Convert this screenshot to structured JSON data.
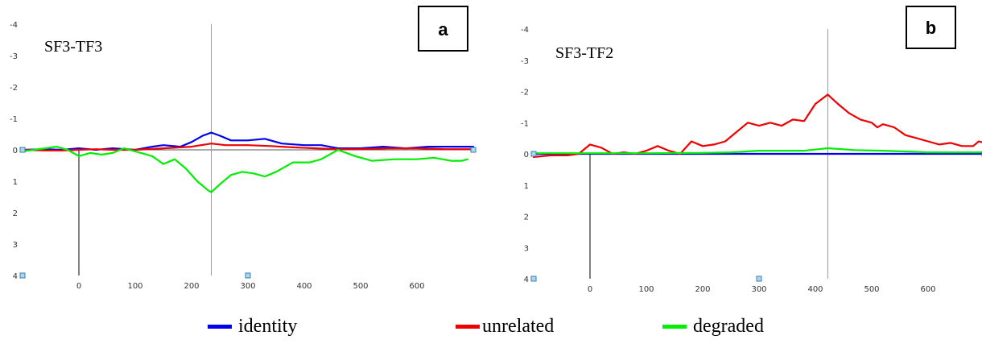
{
  "colors": {
    "identity": "#0000ee",
    "unrelated": "#ee0000",
    "degraded": "#00ee00"
  },
  "legend": {
    "items": [
      {
        "label": "identity",
        "color": "#0000ee"
      },
      {
        "label": "unrelated",
        "color": "#ee0000"
      },
      {
        "label": "degraded",
        "color": "#00ee00"
      }
    ]
  },
  "chart_data": [
    {
      "type": "line",
      "panel_label": "a",
      "title": "SF3-TF3",
      "xlim": [
        -100,
        700
      ],
      "ylim": [
        4,
        -4
      ],
      "y_inverted": true,
      "xticks": [
        0,
        100,
        200,
        300,
        400,
        500,
        600
      ],
      "yticks": [
        -4,
        -3,
        -2,
        -1,
        0,
        1,
        2,
        3,
        4
      ],
      "ytick_labels": [
        "-4",
        "-3",
        "-2",
        "-1",
        "0",
        "1",
        "2",
        "3",
        "4"
      ],
      "cursor_x": 235,
      "series": [
        {
          "name": "identity",
          "x": [
            -100,
            -60,
            -30,
            0,
            30,
            60,
            100,
            130,
            150,
            180,
            200,
            220,
            235,
            250,
            270,
            300,
            330,
            360,
            400,
            430,
            460,
            500,
            540,
            580,
            620,
            660,
            680,
            700
          ],
          "y": [
            0,
            -0.02,
            0,
            -0.05,
            0,
            -0.05,
            0,
            -0.1,
            -0.15,
            -0.1,
            -0.25,
            -0.45,
            -0.55,
            -0.45,
            -0.3,
            -0.3,
            -0.35,
            -0.2,
            -0.15,
            -0.15,
            -0.05,
            -0.05,
            -0.1,
            -0.05,
            -0.1,
            -0.1,
            -0.1,
            -0.1
          ]
        },
        {
          "name": "unrelated",
          "x": [
            -100,
            -60,
            -30,
            0,
            30,
            60,
            100,
            150,
            200,
            235,
            260,
            300,
            340,
            380,
            420,
            460,
            500,
            550,
            600,
            650,
            700
          ],
          "y": [
            0,
            0.02,
            0.02,
            0,
            -0.02,
            0,
            0,
            -0.05,
            -0.1,
            -0.2,
            -0.15,
            -0.15,
            -0.12,
            -0.08,
            -0.05,
            -0.02,
            -0.02,
            -0.05,
            -0.05,
            -0.02,
            -0.02
          ]
        },
        {
          "name": "degraded",
          "x": [
            -100,
            -80,
            -60,
            -40,
            -20,
            0,
            20,
            40,
            60,
            80,
            100,
            130,
            150,
            170,
            190,
            210,
            230,
            235,
            250,
            270,
            290,
            310,
            330,
            350,
            380,
            410,
            430,
            460,
            490,
            520,
            560,
            600,
            630,
            660,
            680,
            690
          ],
          "y": [
            0.05,
            0,
            -0.05,
            -0.1,
            0,
            0.2,
            0.1,
            0.15,
            0.1,
            -0.05,
            0.05,
            0.2,
            0.45,
            0.3,
            0.6,
            1.0,
            1.3,
            1.35,
            1.1,
            0.8,
            0.7,
            0.75,
            0.85,
            0.7,
            0.4,
            0.4,
            0.3,
            0,
            0.2,
            0.35,
            0.3,
            0.3,
            0.25,
            0.35,
            0.35,
            0.3
          ]
        }
      ]
    },
    {
      "type": "line",
      "panel_label": "b",
      "title": "SF3-TF2",
      "xlim": [
        -100,
        700
      ],
      "ylim": [
        4,
        -4
      ],
      "y_inverted": true,
      "xticks": [
        0,
        100,
        200,
        300,
        400,
        500,
        600
      ],
      "yticks": [
        -4,
        -3,
        -2,
        -1,
        0,
        1,
        2,
        3,
        4
      ],
      "ytick_labels": [
        "-4",
        "-3",
        "-2",
        "-1",
        "0",
        "1",
        "2",
        "3",
        "4"
      ],
      "cursor_x": 422,
      "series": [
        {
          "name": "identity",
          "x": [
            -100,
            700
          ],
          "y": [
            0,
            0
          ]
        },
        {
          "name": "unrelated",
          "x": [
            -100,
            -70,
            -40,
            -20,
            0,
            20,
            40,
            60,
            80,
            100,
            120,
            140,
            160,
            180,
            200,
            220,
            240,
            260,
            280,
            300,
            320,
            340,
            360,
            380,
            400,
            422,
            440,
            460,
            480,
            500,
            510,
            520,
            540,
            560,
            580,
            600,
            620,
            640,
            660,
            680,
            690,
            700
          ],
          "y": [
            0.1,
            0.05,
            0.05,
            0,
            -0.3,
            -0.2,
            0,
            -0.05,
            0,
            -0.1,
            -0.25,
            -0.1,
            0,
            -0.4,
            -0.25,
            -0.3,
            -0.4,
            -0.7,
            -1.0,
            -0.9,
            -1.0,
            -0.9,
            -1.1,
            -1.05,
            -1.6,
            -1.9,
            -1.6,
            -1.3,
            -1.1,
            -1.0,
            -0.85,
            -0.95,
            -0.85,
            -0.6,
            -0.5,
            -0.4,
            -0.3,
            -0.35,
            -0.25,
            -0.25,
            -0.4,
            -0.35
          ]
        },
        {
          "name": "degraded",
          "x": [
            -100,
            0,
            100,
            200,
            250,
            300,
            380,
            422,
            470,
            520,
            600,
            700
          ],
          "y": [
            -0.02,
            -0.02,
            -0.02,
            -0.03,
            -0.05,
            -0.1,
            -0.1,
            -0.18,
            -0.12,
            -0.1,
            -0.05,
            -0.05
          ]
        }
      ]
    }
  ]
}
